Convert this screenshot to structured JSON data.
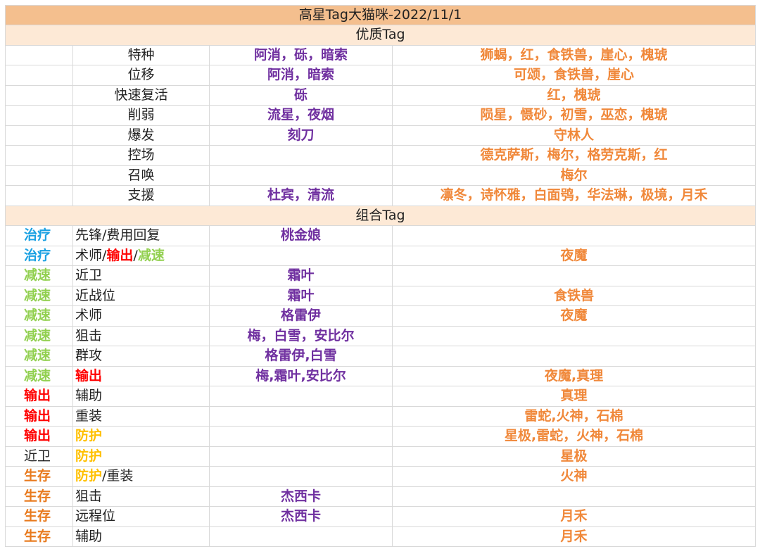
{
  "title": "高星Tag大猫咪-2022/11/1",
  "colors": {
    "title_bg": "#f4bf8e",
    "section_bg": "#fde9d6",
    "six_star": "#7030a0",
    "five_star": "#f0883a",
    "healing": "#1ba1e2",
    "slow": "#92d050",
    "dps": "#ff0000",
    "defense": "#ffc000",
    "survival": "#e87a1e",
    "plain": "#222222"
  },
  "quality_section": {
    "label": "优质Tag",
    "rows": [
      {
        "tag": "特种",
        "six": "阿消，砾，暗索",
        "five": "狮蝎，红，食铁兽，崖心，槐琥"
      },
      {
        "tag": "位移",
        "six": "阿消，暗索",
        "five": "可颂，食铁兽，崖心"
      },
      {
        "tag": "快速复活",
        "six": "砾",
        "five": "红，槐琥"
      },
      {
        "tag": "削弱",
        "six": "流星，夜烟",
        "five": "陨星，慑砂，初雪，巫恋，槐琥"
      },
      {
        "tag": "爆发",
        "six": "刻刀",
        "five": "守林人"
      },
      {
        "tag": "控场",
        "six": "",
        "five": "德克萨斯，梅尔，格劳克斯，红"
      },
      {
        "tag": "召唤",
        "six": "",
        "five": "梅尔"
      },
      {
        "tag": "支援",
        "six": "杜宾，清流",
        "five": "凛冬，诗怀雅，白面鸮，华法琳，极境，月禾"
      }
    ]
  },
  "combo_section": {
    "label": "组合Tag",
    "rows": [
      {
        "tag1": [
          {
            "t": "治疗",
            "c": "healing"
          }
        ],
        "tag2": [
          {
            "t": "先锋/费用回复",
            "c": "plain"
          }
        ],
        "six": "桃金娘",
        "five": ""
      },
      {
        "tag1": [
          {
            "t": "治疗",
            "c": "healing"
          }
        ],
        "tag2": [
          {
            "t": "术师/",
            "c": "plain"
          },
          {
            "t": "输出",
            "c": "dps",
            "b": true
          },
          {
            "t": "/",
            "c": "plain"
          },
          {
            "t": "减速",
            "c": "slow",
            "b": true
          }
        ],
        "six": "",
        "five": "夜魔"
      },
      {
        "tag1": [
          {
            "t": "减速",
            "c": "slow"
          }
        ],
        "tag2": [
          {
            "t": "近卫",
            "c": "plain"
          }
        ],
        "six": "霜叶",
        "five": ""
      },
      {
        "tag1": [
          {
            "t": "减速",
            "c": "slow"
          }
        ],
        "tag2": [
          {
            "t": "近战位",
            "c": "plain"
          }
        ],
        "six": "霜叶",
        "five": "食铁兽"
      },
      {
        "tag1": [
          {
            "t": "减速",
            "c": "slow"
          }
        ],
        "tag2": [
          {
            "t": "术师",
            "c": "plain"
          }
        ],
        "six": "格雷伊",
        "five": "夜魔"
      },
      {
        "tag1": [
          {
            "t": "减速",
            "c": "slow"
          }
        ],
        "tag2": [
          {
            "t": "狙击",
            "c": "plain"
          }
        ],
        "six": "梅，白雪，安比尔",
        "five": ""
      },
      {
        "tag1": [
          {
            "t": "减速",
            "c": "slow"
          }
        ],
        "tag2": [
          {
            "t": "群攻",
            "c": "plain"
          }
        ],
        "six": "格雷伊,白雪",
        "five": ""
      },
      {
        "tag1": [
          {
            "t": "减速",
            "c": "slow"
          }
        ],
        "tag2": [
          {
            "t": "输出",
            "c": "dps",
            "b": true
          }
        ],
        "six": "梅,霜叶,安比尔",
        "five": "夜魔,真理"
      },
      {
        "tag1": [
          {
            "t": "输出",
            "c": "dps"
          }
        ],
        "tag2": [
          {
            "t": "辅助",
            "c": "plain"
          }
        ],
        "six": "",
        "five": "真理"
      },
      {
        "tag1": [
          {
            "t": "输出",
            "c": "dps"
          }
        ],
        "tag2": [
          {
            "t": "重装",
            "c": "plain"
          }
        ],
        "six": "",
        "five": "雷蛇,火神，石棉"
      },
      {
        "tag1": [
          {
            "t": "输出",
            "c": "dps"
          }
        ],
        "tag2": [
          {
            "t": "防护",
            "c": "defense",
            "b": true
          }
        ],
        "six": "",
        "five": "星极,雷蛇，火神，石棉"
      },
      {
        "tag1": [
          {
            "t": "近卫",
            "c": "plain",
            "n": true
          }
        ],
        "tag2": [
          {
            "t": "防护",
            "c": "defense",
            "b": true
          }
        ],
        "six": "",
        "five": "星极"
      },
      {
        "tag1": [
          {
            "t": "生存",
            "c": "survival"
          }
        ],
        "tag2": [
          {
            "t": "防护",
            "c": "defense",
            "b": true
          },
          {
            "t": "/重装",
            "c": "plain"
          }
        ],
        "six": "",
        "five": "火神"
      },
      {
        "tag1": [
          {
            "t": "生存",
            "c": "survival"
          }
        ],
        "tag2": [
          {
            "t": "狙击",
            "c": "plain"
          }
        ],
        "six": "杰西卡",
        "five": ""
      },
      {
        "tag1": [
          {
            "t": "生存",
            "c": "survival"
          }
        ],
        "tag2": [
          {
            "t": "远程位",
            "c": "plain"
          }
        ],
        "six": "杰西卡",
        "five": "月禾"
      },
      {
        "tag1": [
          {
            "t": "生存",
            "c": "survival"
          }
        ],
        "tag2": [
          {
            "t": "辅助",
            "c": "plain"
          }
        ],
        "six": "",
        "five": "月禾"
      }
    ]
  }
}
